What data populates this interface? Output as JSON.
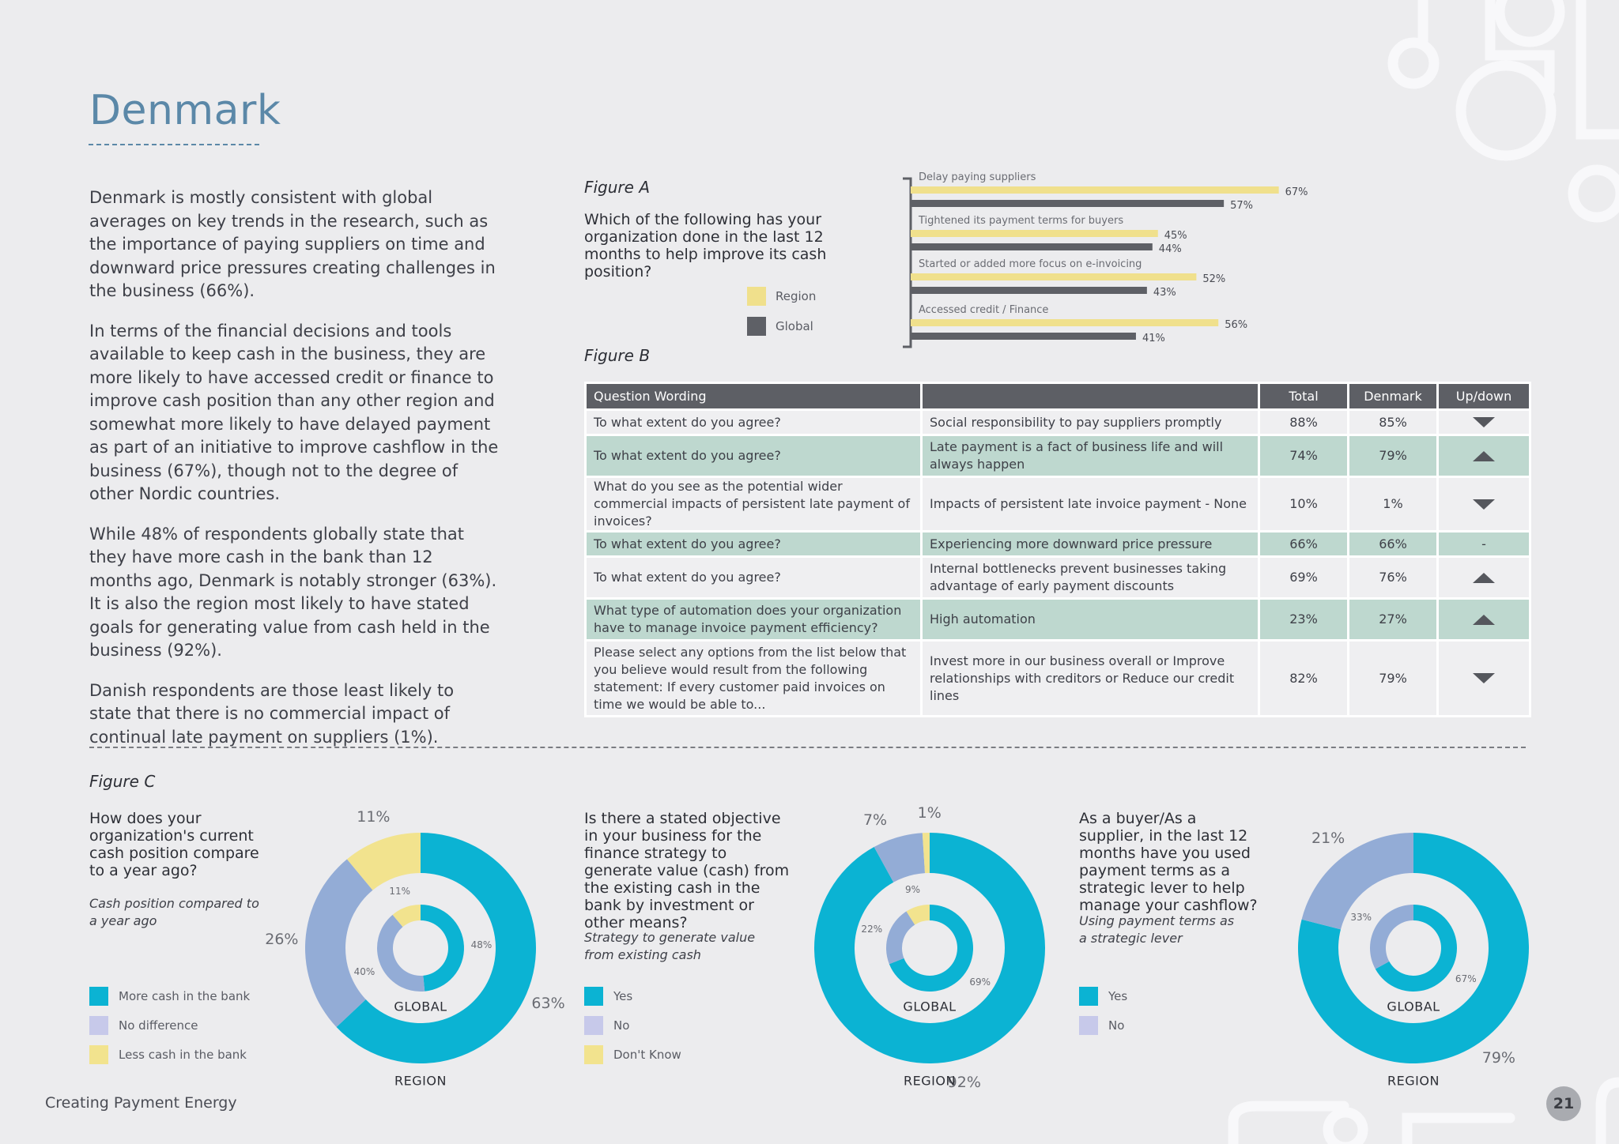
{
  "page": {
    "title": "Denmark",
    "intro_paragraphs": [
      "Denmark is mostly consistent with global averages on key trends in the research, such as the importance of paying suppliers on time and downward price pressures creating challenges in the business (66%).",
      "In terms of the financial decisions and tools available to keep cash in the business, they are more likely to have accessed credit or finance to improve cash position than any other region and somewhat more likely to have delayed payment as part of an initiative to improve cashflow in the business (67%), though not to the degree of other Nordic countries.",
      "While 48% of respondents globally state that they have more cash in the bank than 12 months ago, Denmark is notably stronger (63%). It is also the region most likely to have stated goals for generating value from cash held in the business (92%).",
      "Danish respondents are those least likely to state that there is no commercial impact of continual late payment on suppliers (1%)."
    ],
    "footer": "Creating Payment Energy",
    "page_number": "21"
  },
  "colors": {
    "region": "#f0e08c",
    "global": "#5e6066",
    "teal": "#0bb3d3",
    "lavender": "#93acd6",
    "yellow": "#f2e38e",
    "title_blue": "#5b88a8"
  },
  "figure_a": {
    "label": "Figure A",
    "question": "Which of the following has your organization done in the last 12 months to help improve its cash position?",
    "legend": [
      {
        "label": "Region",
        "color": "#f0e08c"
      },
      {
        "label": "Global",
        "color": "#5e6066"
      }
    ],
    "chart_data": {
      "type": "bar",
      "orientation": "horizontal",
      "categories": [
        "Delay paying suppliers",
        "Tightened its payment terms for buyers",
        "Started or added more focus on e-invoicing",
        "Accessed credit / Finance"
      ],
      "series": [
        {
          "name": "Region",
          "values": [
            67,
            45,
            52,
            56
          ]
        },
        {
          "name": "Global",
          "values": [
            57,
            44,
            43,
            41
          ]
        }
      ],
      "value_suffix": "%",
      "xlim": [
        0,
        100
      ]
    }
  },
  "figure_b": {
    "label": "Figure B",
    "headers": [
      "Question Wording",
      "",
      "Total",
      "Denmark",
      "Up/down"
    ],
    "rows": [
      {
        "question": "To what extent do you agree?",
        "statement": "Social responsibility to pay suppliers promptly",
        "total": "88%",
        "denmark": "85%",
        "direction": "down"
      },
      {
        "question": "To what extent do you agree?",
        "statement": "Late payment is a fact of business life and will always happen",
        "total": "74%",
        "denmark": "79%",
        "direction": "up"
      },
      {
        "question": "What do you see as the potential wider commercial impacts of persistent late payment of invoices?",
        "statement": "Impacts of persistent late invoice payment - None",
        "total": "10%",
        "denmark": "1%",
        "direction": "down"
      },
      {
        "question": "To what extent do you agree?",
        "statement": "Experiencing more downward price pressure",
        "total": "66%",
        "denmark": "66%",
        "direction": "-"
      },
      {
        "question": "To what extent do you agree?",
        "statement": "Internal bottlenecks prevent businesses taking advantage of early payment discounts",
        "total": "69%",
        "denmark": "76%",
        "direction": "up"
      },
      {
        "question": "What type of automation does your organization have to manage invoice payment efficiency?",
        "statement": "High automation",
        "total": "23%",
        "denmark": "27%",
        "direction": "up"
      },
      {
        "question": "Please select any options from the list below that you believe would result from the following statement: If every customer paid invoices on time we would be able to...",
        "statement": "Invest more in our business overall or Improve relationships with creditors or Reduce our credit lines",
        "total": "82%",
        "denmark": "79%",
        "direction": "down"
      }
    ]
  },
  "figure_c": {
    "label": "Figure C",
    "outer_ring_label": "REGION",
    "inner_ring_label": "GLOBAL",
    "charts": [
      {
        "question": "How does your organization's current cash position compare to a year ago?",
        "subtitle": "Cash position compared to a year ago",
        "legend": [
          {
            "label": "More cash in the bank",
            "color": "#0bb3d3"
          },
          {
            "label": "No difference",
            "color": "#c7c9ea"
          },
          {
            "label": "Less cash in the bank",
            "color": "#f2e38e"
          }
        ],
        "chart_data": {
          "type": "pie",
          "style": "double-donut",
          "categories": [
            "More cash in the bank",
            "No difference",
            "Less cash in the bank"
          ],
          "series": [
            {
              "name": "REGION",
              "values": [
                63,
                26,
                11
              ]
            },
            {
              "name": "GLOBAL",
              "values": [
                48,
                40,
                11
              ]
            }
          ],
          "region_labels": [
            "63%",
            "26%",
            "11%"
          ],
          "global_labels": [
            "48%",
            "40%",
            "11%"
          ]
        }
      },
      {
        "question": "Is there a stated objective in your business for the finance strategy to generate value (cash) from the existing cash in the bank by investment or other means?",
        "subtitle": "Strategy to generate value from existing cash",
        "legend": [
          {
            "label": "Yes",
            "color": "#0bb3d3"
          },
          {
            "label": "No",
            "color": "#c7c9ea"
          },
          {
            "label": "Don't Know",
            "color": "#f2e38e"
          }
        ],
        "chart_data": {
          "type": "pie",
          "style": "double-donut",
          "categories": [
            "Yes",
            "No",
            "Don't Know"
          ],
          "series": [
            {
              "name": "REGION",
              "values": [
                92,
                7,
                1
              ]
            },
            {
              "name": "GLOBAL",
              "values": [
                69,
                22,
                9
              ]
            }
          ],
          "region_labels": [
            "92%",
            "7%",
            "1%"
          ],
          "global_labels": [
            "69%",
            "22%",
            "9%"
          ]
        }
      },
      {
        "question": "As a buyer/As a supplier, in the last 12 months have you used payment terms as a strategic lever to help manage your cashflow?",
        "subtitle": "Using payment terms as a strategic lever",
        "legend": [
          {
            "label": "Yes",
            "color": "#0bb3d3"
          },
          {
            "label": "No",
            "color": "#c7c9ea"
          }
        ],
        "chart_data": {
          "type": "pie",
          "style": "double-donut",
          "categories": [
            "Yes",
            "No"
          ],
          "series": [
            {
              "name": "REGION",
              "values": [
                79,
                21
              ]
            },
            {
              "name": "GLOBAL",
              "values": [
                67,
                33
              ]
            }
          ],
          "region_labels": [
            "79%",
            "21%"
          ],
          "global_labels": [
            "67%",
            "33%"
          ]
        }
      }
    ]
  }
}
